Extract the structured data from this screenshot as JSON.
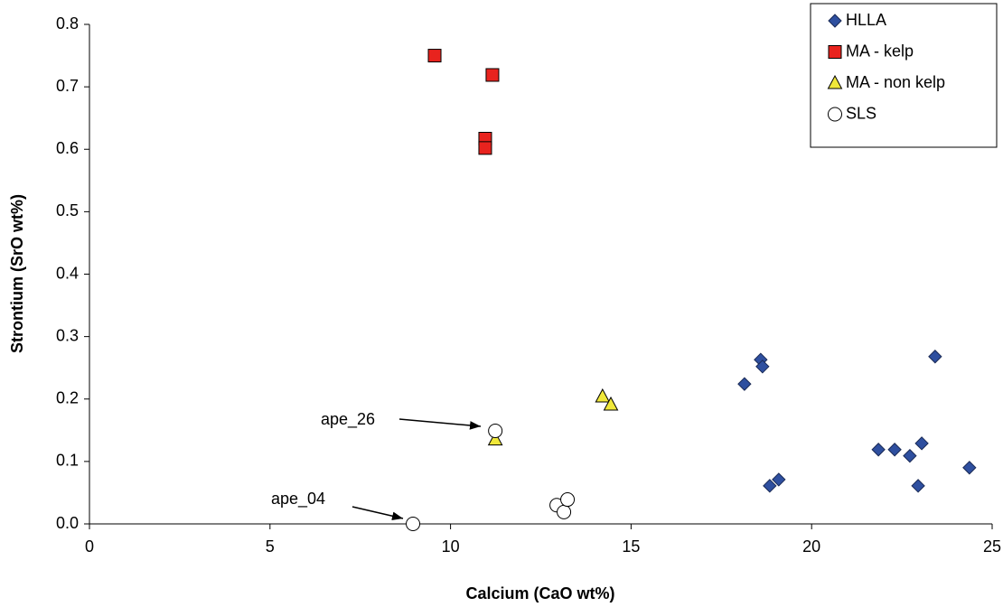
{
  "chart_data": {
    "type": "scatter",
    "x_label": "Calcium (CaO wt%)",
    "y_label": "Strontium (SrO wt%)",
    "xlim": [
      0,
      25
    ],
    "xticks": [
      0,
      5,
      10,
      15,
      20,
      25
    ],
    "ylim": [
      0,
      0.8
    ],
    "yticks": [
      {
        "value": 0,
        "label": "0.0"
      },
      0.1,
      0.2,
      0.3,
      0.4,
      0.5,
      0.6,
      0.7,
      0.8
    ],
    "grid": false,
    "legend": "top-right",
    "annotations": [
      "ape_26",
      "ape_04"
    ],
    "series": [
      {
        "name": "HLLA",
        "color": "#2e4f9f",
        "marker": "diamond",
        "x": [
          18.14,
          18.59,
          18.64,
          23.42,
          18.84,
          19.09,
          21.85,
          22.3,
          22.72,
          23.05,
          22.95,
          24.37
        ],
        "values": [
          0.224,
          0.263,
          0.252,
          0.268,
          0.061,
          0.071,
          0.119,
          0.119,
          0.109,
          0.129,
          0.061,
          0.09
        ]
      },
      {
        "name": "MA - kelp",
        "color": "#e8231e",
        "marker": "square",
        "x": [
          9.56,
          11.16,
          10.96,
          10.96
        ],
        "values": [
          0.75,
          0.719,
          0.617,
          0.602
        ]
      },
      {
        "name": "MA - non kelp",
        "color": "#f0e83a",
        "marker": "triangle",
        "x": [
          14.21,
          14.44,
          11.24
        ],
        "values": [
          0.204,
          0.191,
          0.135
        ]
      },
      {
        "name": "SLS",
        "color": "#ffffff",
        "marker": "circle",
        "x": [
          11.24,
          8.96,
          12.94,
          13.14,
          13.24
        ],
        "values": [
          0.149,
          0.0,
          0.03,
          0.019,
          0.039
        ]
      }
    ]
  }
}
